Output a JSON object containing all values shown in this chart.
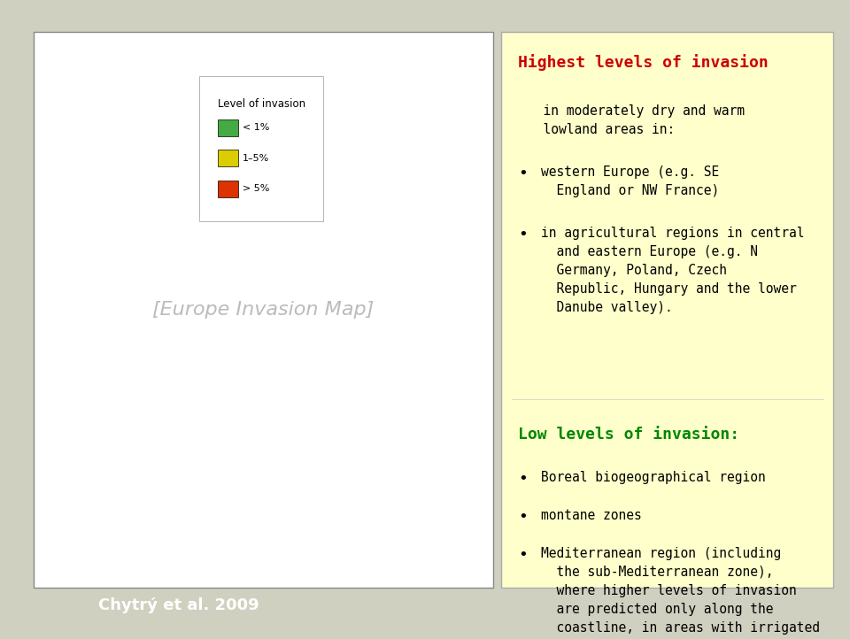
{
  "background_color": "#d0d0c0",
  "left_panel_bg": "#ffffff",
  "right_panel_bg": "#ffffcc",
  "title_highest": "Highest levels of invasion",
  "title_highest_color": "#cc0000",
  "title_low": "Low levels of invasion:",
  "title_low_color": "#008800",
  "citation": "Chytrý et al. 2009",
  "citation_bg": "#000000",
  "citation_color": "#ffffff",
  "legend_title": "Level of invasion",
  "legend_items": [
    {
      "label": "< 1%",
      "color": "#44aa44"
    },
    {
      "label": "1–5%",
      "color": "#ddcc00"
    },
    {
      "label": "> 5%",
      "color": "#dd3300"
    }
  ]
}
